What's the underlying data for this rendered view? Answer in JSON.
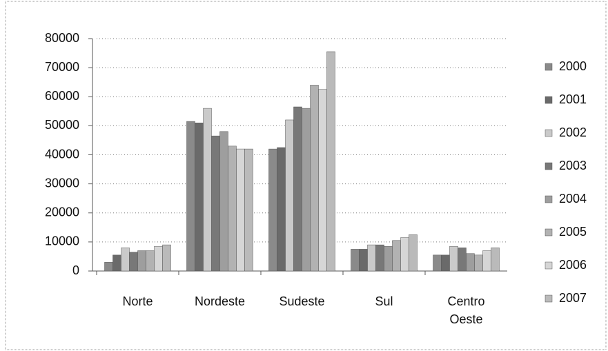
{
  "chart_data": {
    "type": "bar",
    "categories": [
      "Norte",
      "Nordeste",
      "Sudeste",
      "Sul",
      "Centro Oeste"
    ],
    "series": [
      {
        "name": "2000",
        "color": "#8a8a8a",
        "values": [
          3000,
          51500,
          42000,
          7500,
          5500
        ]
      },
      {
        "name": "2001",
        "color": "#6a6a6a",
        "values": [
          5500,
          51000,
          42500,
          7500,
          5500
        ]
      },
      {
        "name": "2002",
        "color": "#cacaca",
        "values": [
          8000,
          56000,
          52000,
          9000,
          8500
        ]
      },
      {
        "name": "2003",
        "color": "#787878",
        "values": [
          6500,
          46500,
          56500,
          9000,
          8000
        ]
      },
      {
        "name": "2004",
        "color": "#9e9e9e",
        "values": [
          7000,
          48000,
          56000,
          8500,
          6000
        ]
      },
      {
        "name": "2005",
        "color": "#b2b2b2",
        "values": [
          7000,
          43000,
          64000,
          10500,
          5500
        ]
      },
      {
        "name": "2006",
        "color": "#d6d6d6",
        "values": [
          8500,
          42000,
          62500,
          11500,
          7000
        ]
      },
      {
        "name": "2007",
        "color": "#bababa",
        "values": [
          9000,
          42000,
          75500,
          12500,
          8000
        ]
      }
    ],
    "ylim": [
      0,
      80000
    ],
    "yticks": [
      0,
      10000,
      20000,
      30000,
      40000,
      50000,
      60000,
      70000,
      80000
    ],
    "grid": true,
    "legend": "right"
  }
}
